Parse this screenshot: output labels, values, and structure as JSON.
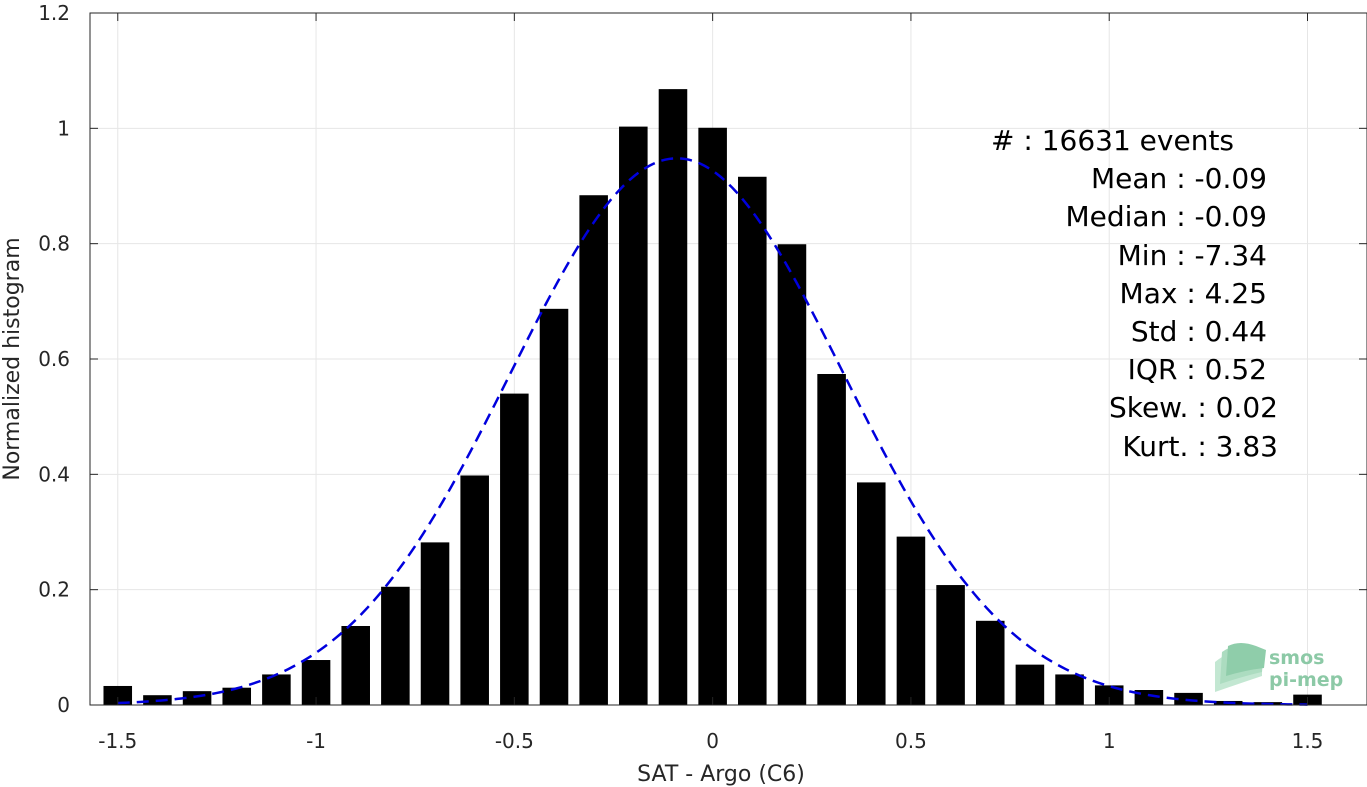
{
  "chart_data": {
    "type": "bar",
    "xlabel": "SAT - Argo (C6)",
    "ylabel": "Normalized histogram",
    "xlim": [
      -1.57,
      1.65
    ],
    "ylim": [
      0,
      1.2
    ],
    "xticks": [
      -1.5,
      -1,
      -0.5,
      0,
      0.5,
      1,
      1.5
    ],
    "xtick_labels": [
      "-1.5",
      "-1",
      "-0.5",
      "0",
      "0.5",
      "1",
      "1.5"
    ],
    "yticks": [
      0,
      0.2,
      0.4,
      0.6,
      0.8,
      1,
      1.2
    ],
    "ytick_labels": [
      "0",
      "0.2",
      "0.4",
      "0.6",
      "0.8",
      "1",
      "1.2"
    ],
    "grid": true,
    "bar_color": "#000000",
    "bin_width": 0.1,
    "bin_centers": [
      -1.5,
      -1.4,
      -1.3,
      -1.2,
      -1.1,
      -1.0,
      -0.9,
      -0.8,
      -0.7,
      -0.6,
      -0.5,
      -0.4,
      -0.3,
      -0.2,
      -0.1,
      0.0,
      0.1,
      0.2,
      0.3,
      0.4,
      0.5,
      0.6,
      0.7,
      0.8,
      0.9,
      1.0,
      1.1,
      1.2,
      1.3,
      1.4,
      1.5
    ],
    "values": [
      0.033,
      0.017,
      0.024,
      0.03,
      0.053,
      0.078,
      0.137,
      0.205,
      0.282,
      0.398,
      0.54,
      0.687,
      0.884,
      1.003,
      1.068,
      1.001,
      0.916,
      0.799,
      0.574,
      0.386,
      0.292,
      0.208,
      0.146,
      0.07,
      0.053,
      0.034,
      0.026,
      0.021,
      0.007,
      0.005,
      0.018
    ],
    "fit": {
      "type": "gaussian",
      "color": "#0000dd",
      "style": "dashed",
      "mean": -0.09,
      "std": 0.42,
      "peak": 0.948
    },
    "stats": {
      "events": "#  : 16631 events",
      "mean": "Mean : -0.09",
      "median": "Median : -0.09",
      "min": "Min : -7.34",
      "max": "Max : 4.25",
      "std": "Std : 0.44",
      "iqr": "IQR : 0.52",
      "skew": "Skew. : 0.02",
      "kurt": "Kurt. : 3.83"
    }
  },
  "logo": {
    "line1": "smos",
    "line2": "pi-mep"
  }
}
